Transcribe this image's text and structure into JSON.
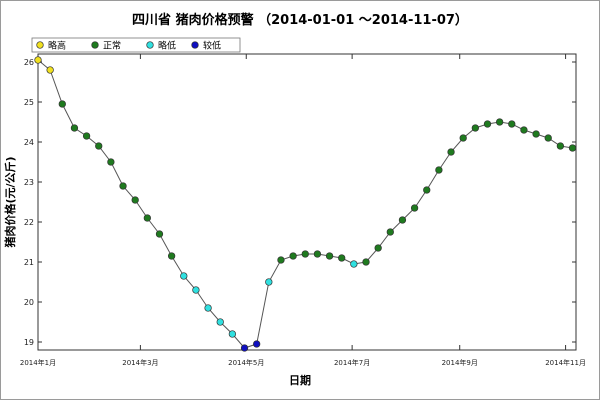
{
  "chart_data": {
    "type": "line",
    "title": "四川省 猪肉价格预警 （2014-01-01 ～2014-11-07）",
    "xlabel": "日期",
    "ylabel": "猪肉价格(元/公斤)",
    "ylim": [
      18.8,
      26.2
    ],
    "yticks": [
      19,
      20,
      21,
      22,
      23,
      24,
      25,
      26
    ],
    "x_ticks": [
      {
        "date": "2014-01-01",
        "label": "2014年1月"
      },
      {
        "date": "2014-03-01",
        "label": "2014年3月"
      },
      {
        "date": "2014-05-01",
        "label": "2014年5月"
      },
      {
        "date": "2014-07-01",
        "label": "2014年7月"
      },
      {
        "date": "2014-09-01",
        "label": "2014年9月"
      },
      {
        "date": "2014-11-01",
        "label": "2014年11月"
      }
    ],
    "xrange": [
      "2014-01-01",
      "2014-11-07"
    ],
    "legend_position": "top-left",
    "categories": [
      {
        "key": "high",
        "name": "略高",
        "color": "#f0e020"
      },
      {
        "key": "normal",
        "name": "正常",
        "color": "#1f7a1f"
      },
      {
        "key": "low",
        "name": "略低",
        "color": "#30e0e0"
      },
      {
        "key": "lower",
        "name": "较低",
        "color": "#1010c0"
      }
    ],
    "points": [
      {
        "date": "2014-01-01",
        "value": 26.05,
        "level": "high"
      },
      {
        "date": "2014-01-08",
        "value": 25.8,
        "level": "high"
      },
      {
        "date": "2014-01-15",
        "value": 24.95,
        "level": "normal"
      },
      {
        "date": "2014-01-22",
        "value": 24.35,
        "level": "normal"
      },
      {
        "date": "2014-01-29",
        "value": 24.15,
        "level": "normal"
      },
      {
        "date": "2014-02-05",
        "value": 23.9,
        "level": "normal"
      },
      {
        "date": "2014-02-12",
        "value": 23.5,
        "level": "normal"
      },
      {
        "date": "2014-02-19",
        "value": 22.9,
        "level": "normal"
      },
      {
        "date": "2014-02-26",
        "value": 22.55,
        "level": "normal"
      },
      {
        "date": "2014-03-05",
        "value": 22.1,
        "level": "normal"
      },
      {
        "date": "2014-03-12",
        "value": 21.7,
        "level": "normal"
      },
      {
        "date": "2014-03-19",
        "value": 21.15,
        "level": "normal"
      },
      {
        "date": "2014-03-26",
        "value": 20.65,
        "level": "low"
      },
      {
        "date": "2014-04-02",
        "value": 20.3,
        "level": "low"
      },
      {
        "date": "2014-04-09",
        "value": 19.85,
        "level": "low"
      },
      {
        "date": "2014-04-16",
        "value": 19.5,
        "level": "low"
      },
      {
        "date": "2014-04-23",
        "value": 19.2,
        "level": "low"
      },
      {
        "date": "2014-04-30",
        "value": 18.85,
        "level": "lower"
      },
      {
        "date": "2014-05-07",
        "value": 18.95,
        "level": "lower"
      },
      {
        "date": "2014-05-14",
        "value": 20.5,
        "level": "low"
      },
      {
        "date": "2014-05-21",
        "value": 21.05,
        "level": "normal"
      },
      {
        "date": "2014-05-28",
        "value": 21.15,
        "level": "normal"
      },
      {
        "date": "2014-06-04",
        "value": 21.2,
        "level": "normal"
      },
      {
        "date": "2014-06-11",
        "value": 21.2,
        "level": "normal"
      },
      {
        "date": "2014-06-18",
        "value": 21.15,
        "level": "normal"
      },
      {
        "date": "2014-06-25",
        "value": 21.1,
        "level": "normal"
      },
      {
        "date": "2014-07-02",
        "value": 20.95,
        "level": "low"
      },
      {
        "date": "2014-07-09",
        "value": 21.0,
        "level": "normal"
      },
      {
        "date": "2014-07-16",
        "value": 21.35,
        "level": "normal"
      },
      {
        "date": "2014-07-23",
        "value": 21.75,
        "level": "normal"
      },
      {
        "date": "2014-07-30",
        "value": 22.05,
        "level": "normal"
      },
      {
        "date": "2014-08-06",
        "value": 22.35,
        "level": "normal"
      },
      {
        "date": "2014-08-13",
        "value": 22.8,
        "level": "normal"
      },
      {
        "date": "2014-08-20",
        "value": 23.3,
        "level": "normal"
      },
      {
        "date": "2014-08-27",
        "value": 23.75,
        "level": "normal"
      },
      {
        "date": "2014-09-03",
        "value": 24.1,
        "level": "normal"
      },
      {
        "date": "2014-09-10",
        "value": 24.35,
        "level": "normal"
      },
      {
        "date": "2014-09-17",
        "value": 24.45,
        "level": "normal"
      },
      {
        "date": "2014-09-24",
        "value": 24.5,
        "level": "normal"
      },
      {
        "date": "2014-10-01",
        "value": 24.45,
        "level": "normal"
      },
      {
        "date": "2014-10-08",
        "value": 24.3,
        "level": "normal"
      },
      {
        "date": "2014-10-15",
        "value": 24.2,
        "level": "normal"
      },
      {
        "date": "2014-10-22",
        "value": 24.1,
        "level": "normal"
      },
      {
        "date": "2014-10-29",
        "value": 23.9,
        "level": "normal"
      },
      {
        "date": "2014-11-05",
        "value": 23.85,
        "level": "normal"
      }
    ]
  }
}
